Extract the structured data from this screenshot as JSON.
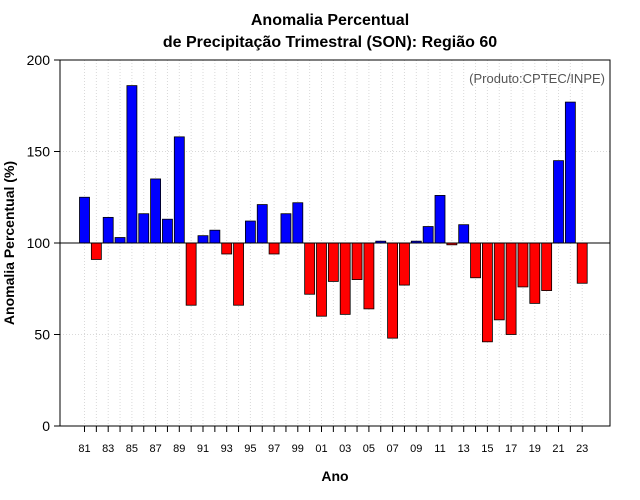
{
  "chart_data": {
    "type": "bar",
    "title": [
      "Anomalia Percentual",
      "de Precipitação Trimestral (SON): Região 60"
    ],
    "xlabel": "Ano",
    "ylabel": "Anomalia Percentual (%)",
    "credit": "(Produto:CPTEC/INPE)",
    "ylim": [
      0,
      200
    ],
    "yticks": [
      "0",
      "50",
      "100",
      "150",
      "200"
    ],
    "baseline": 100,
    "categories": [
      "81",
      "82",
      "83",
      "84",
      "85",
      "86",
      "87",
      "88",
      "89",
      "90",
      "91",
      "92",
      "93",
      "94",
      "95",
      "96",
      "97",
      "98",
      "99",
      "00",
      "01",
      "02",
      "03",
      "04",
      "05",
      "06",
      "07",
      "08",
      "09",
      "10",
      "11",
      "12",
      "13",
      "14",
      "15",
      "16",
      "17",
      "18",
      "19",
      "20",
      "21",
      "22",
      "23"
    ],
    "xtick_labels": [
      "81",
      "83",
      "85",
      "87",
      "89",
      "91",
      "93",
      "95",
      "97",
      "99",
      "01",
      "03",
      "05",
      "07",
      "09",
      "11",
      "13",
      "15",
      "17",
      "19",
      "21",
      "23"
    ],
    "values": [
      125,
      91,
      114,
      103,
      186,
      116,
      135,
      113,
      158,
      66,
      104,
      107,
      94,
      66,
      112,
      121,
      94,
      116,
      122,
      72,
      60,
      79,
      61,
      80,
      64,
      101,
      48,
      77,
      101,
      109,
      126,
      99,
      110,
      81,
      46,
      58,
      50,
      76,
      67,
      74,
      145,
      177,
      78
    ],
    "grid": true,
    "colors": {
      "positive": "#0000ff",
      "negative": "#ff0000",
      "outline": "#000000",
      "grid": "#d9d9d9"
    }
  }
}
